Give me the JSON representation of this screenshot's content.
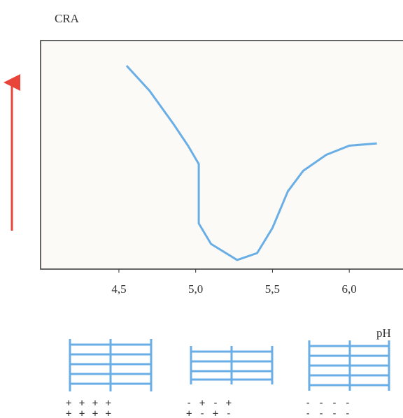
{
  "chart_data": {
    "type": "line",
    "y_label": "CRA",
    "x_label": "pH",
    "x": [
      4.55,
      4.7,
      4.85,
      4.95,
      5.02,
      5.02,
      5.1,
      5.27,
      5.4,
      5.5,
      5.6,
      5.7,
      5.85,
      6.0,
      6.18
    ],
    "series": [
      {
        "color": "#6aaee6",
        "values": [
          89,
          78,
          64,
          54,
          46,
          20,
          11,
          4,
          7,
          18,
          34,
          43,
          50,
          54,
          55
        ]
      }
    ],
    "xlim": [
      3.99,
      6.35
    ],
    "ylim": [
      0,
      100
    ],
    "xticks": [
      {
        "value": 4.5,
        "label": "4,5"
      },
      {
        "value": 5.0,
        "label": "5,0"
      },
      {
        "value": 5.5,
        "label": "5,5"
      },
      {
        "value": 6.0,
        "label": "6,0"
      }
    ],
    "annotations": [
      [
        "+ + + +",
        "+ + + +"
      ],
      [
        "- + - +",
        "+ - + -"
      ],
      [
        "- - - -",
        "- - - -"
      ]
    ]
  }
}
